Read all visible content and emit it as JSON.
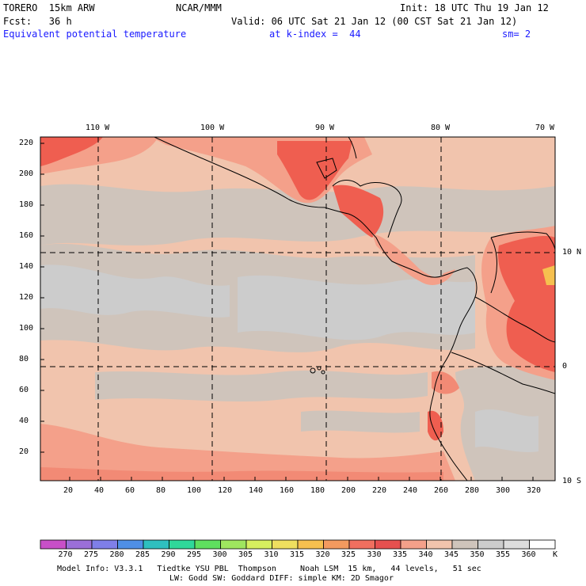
{
  "header": {
    "model": "TORERO  15km ARW",
    "org": "NCAR/MMM",
    "init": "Init: 18 UTC Thu 19 Jan 12",
    "fcst": "Fcst:   36 h",
    "valid": "Valid: 06 UTC Sat 21 Jan 12 (00 CST Sat 21 Jan 12)",
    "field": "Equivalent potential temperature",
    "level": "at k-index =  44",
    "smooth": "sm= 2"
  },
  "map": {
    "top_labels": [
      "110 W",
      "100 W",
      "90 W",
      "80 W",
      "70 W"
    ],
    "right_labels": [
      "10 N",
      "0",
      "10 S"
    ],
    "y_ticks": [
      "220",
      "200",
      "180",
      "160",
      "140",
      "120",
      "100",
      "80",
      "60",
      "40",
      "20"
    ],
    "x_ticks": [
      "20",
      "40",
      "60",
      "80",
      "100",
      "120",
      "140",
      "160",
      "180",
      "200",
      "220",
      "240",
      "260",
      "280",
      "300",
      "320"
    ]
  },
  "colorbar": {
    "labels": [
      "270",
      "275",
      "280",
      "285",
      "290",
      "295",
      "300",
      "305",
      "310",
      "315",
      "320",
      "325",
      "330",
      "335",
      "340",
      "345",
      "350",
      "355",
      "360"
    ],
    "unit": "K",
    "colors": [
      "#c84fc8",
      "#9b6fd8",
      "#7f7fe8",
      "#4f8fe6",
      "#2fbfbf",
      "#2fd89a",
      "#5fdf5f",
      "#9fe65f",
      "#d6ef5f",
      "#efdf5f",
      "#f6c04f",
      "#f39a5f",
      "#f06f5f",
      "#e6504f",
      "#f4a08a",
      "#f1c4ad",
      "#cfc4bb",
      "#cccccc",
      "#dddddd",
      "#ffffff"
    ]
  },
  "footer": {
    "line1": "Model Info: V3.3.1   Tiedtke YSU PBL  Thompson     Noah LSM  15 km,   44 levels,   51 sec",
    "line2": "LW: Godd SW: Goddard DIFF: simple KM: 2D Smagor"
  }
}
